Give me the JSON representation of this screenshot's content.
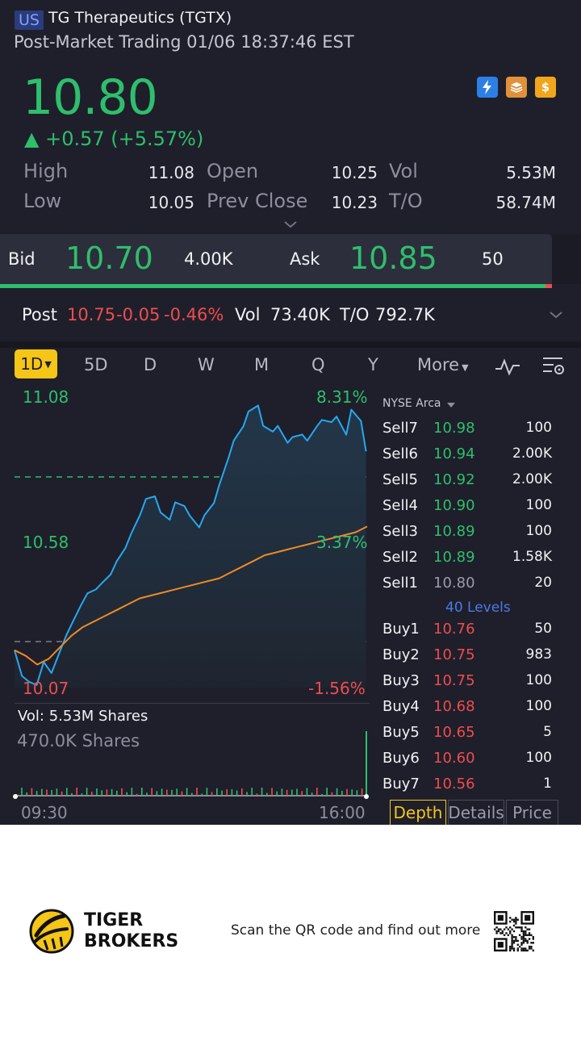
{
  "header": {
    "market_badge": "US",
    "title": "TG Therapeutics (TGTX)",
    "session": "Post-Market Trading 01/06 18:37:46 EST"
  },
  "quote": {
    "price": "10.80",
    "change": "▲ +0.57 (+5.57%)",
    "icons": [
      "lightning-icon",
      "stack-icon",
      "dollar-icon"
    ]
  },
  "stats": {
    "high_label": "High",
    "high": "11.08",
    "low_label": "Low",
    "low": "10.05",
    "open_label": "Open",
    "open": "10.25",
    "prev_close_label": "Prev Close",
    "prev_close": "10.23",
    "vol_label": "Vol",
    "vol": "5.53M",
    "turnover_label": "T/O",
    "turnover": "58.74M"
  },
  "bidask": {
    "bid_label": "Bid",
    "bid": "10.70",
    "bid_size": "4.00K",
    "ask_label": "Ask",
    "ask": "10.85",
    "ask_size": "50"
  },
  "post": {
    "label": "Post",
    "price": "10.75",
    "change": "-0.05",
    "pct": "-0.46%",
    "vol_label": "Vol",
    "vol": "73.40K",
    "to_label": "T/O",
    "to": "792.7K"
  },
  "tabs": {
    "active": "1D",
    "items": [
      "5D",
      "D",
      "W",
      "M",
      "Q",
      "Y"
    ],
    "more": "More"
  },
  "chart": {
    "price_high": "11.08",
    "price_mid": "10.58",
    "price_low": "10.07",
    "pct_high": "8.31%",
    "pct_mid": "3.37%",
    "pct_low": "-1.56%",
    "vol_line": "Vol:   5.53M Shares",
    "vol_scale": "470.0K Shares",
    "time_start": "09:30",
    "time_end": "16:00"
  },
  "chart_data": {
    "type": "line",
    "ylim": [
      10.07,
      11.08
    ],
    "prev_close": 10.23,
    "series": [
      {
        "values": [
          10.2,
          10.12,
          10.1,
          10.08,
          10.15,
          10.11,
          10.18,
          10.26,
          10.31,
          10.36,
          10.39,
          10.4,
          10.43,
          10.47,
          10.52,
          10.56,
          10.6,
          10.66,
          10.72,
          10.74,
          10.69,
          10.66,
          10.71,
          10.69,
          10.66,
          10.63,
          10.68,
          10.72,
          10.77,
          10.86,
          10.92,
          10.98,
          11.04,
          11.06,
          10.98,
          10.95,
          10.97,
          10.92,
          10.95,
          10.96,
          10.93,
          10.97,
          10.99,
          10.99,
          11.02,
          10.96,
          11.04,
          10.99,
          10.88
        ]
      },
      {
        "values": [
          10.2,
          10.18,
          10.15,
          10.17,
          10.21,
          10.25,
          10.28,
          10.3,
          10.32,
          10.34,
          10.36,
          10.38,
          10.39,
          10.4,
          10.41,
          10.42,
          10.43,
          10.44,
          10.45,
          10.47,
          10.49,
          10.51,
          10.53,
          10.54,
          10.55,
          10.56,
          10.57,
          10.58,
          10.59,
          10.6,
          10.61,
          10.63
        ]
      }
    ]
  },
  "orderbook": {
    "exchange": "NYSE Arca",
    "sells": [
      {
        "label": "Sell7",
        "price": "10.98",
        "size": "100"
      },
      {
        "label": "Sell6",
        "price": "10.94",
        "size": "2.00K"
      },
      {
        "label": "Sell5",
        "price": "10.92",
        "size": "2.00K"
      },
      {
        "label": "Sell4",
        "price": "10.90",
        "size": "100"
      },
      {
        "label": "Sell3",
        "price": "10.89",
        "size": "100"
      },
      {
        "label": "Sell2",
        "price": "10.89",
        "size": "1.58K"
      },
      {
        "label": "Sell1",
        "price": "10.80",
        "size": "20"
      }
    ],
    "levels": "40 Levels",
    "buys": [
      {
        "label": "Buy1",
        "price": "10.76",
        "size": "50"
      },
      {
        "label": "Buy2",
        "price": "10.75",
        "size": "983"
      },
      {
        "label": "Buy3",
        "price": "10.75",
        "size": "100"
      },
      {
        "label": "Buy4",
        "price": "10.68",
        "size": "100"
      },
      {
        "label": "Buy5",
        "price": "10.65",
        "size": "5"
      },
      {
        "label": "Buy6",
        "price": "10.60",
        "size": "100"
      },
      {
        "label": "Buy7",
        "price": "10.56",
        "size": "1"
      }
    ]
  },
  "bottom_tabs": {
    "depth": "Depth",
    "details": "Details",
    "price": "Price"
  },
  "footer": {
    "brand_line1": "TIGER",
    "brand_line2": "BROKERS",
    "cta": "Scan the QR code and find out more"
  },
  "colors": {
    "up": "#2fbe6c",
    "down": "#ee4d4d",
    "accent": "#f5c518",
    "background": "#1e1f2b"
  }
}
